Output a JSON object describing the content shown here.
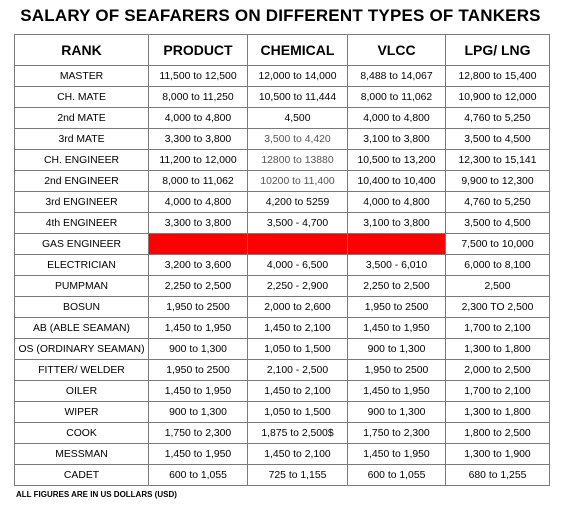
{
  "title": "SALARY OF SEAFARERS ON DIFFERENT TYPES OF TANKERS",
  "headers": [
    "RANK",
    "PRODUCT",
    "CHEMICAL",
    "VLCC",
    "LPG/ LNG"
  ],
  "rows": [
    [
      "MASTER",
      "11,500 to 12,500",
      "12,000 to 14,000",
      "8,488 to 14,067",
      "12,800 to 15,400"
    ],
    [
      "CH. MATE",
      "8,000 to 11,250",
      "10,500 to 11,444",
      "8,000 to 11,062",
      "10,900 to 12,000"
    ],
    [
      "2nd MATE",
      "4,000 to 4,800",
      "4,500",
      "4,000 to 4,800",
      "4,760 to 5,250"
    ],
    [
      "3rd MATE",
      "3,300 to 3,800",
      "3,500 to 4,420",
      "3,100 to 3,800",
      "3,500 to 4,500"
    ],
    [
      "CH. ENGINEER",
      "11,200 to 12,000",
      "12800 to 13880",
      "10,500 to 13,200",
      "12,300 to 15,141"
    ],
    [
      "2nd ENGINEER",
      "8,000 to 11,062",
      "10200 to 11,400",
      "10,400 to 10,400",
      "9,900 to 12,300"
    ],
    [
      "3rd ENGINEER",
      "4,000 to 4,800",
      "4,200 to 5259",
      "4,000 to 4,800",
      "4,760 to 5,250"
    ],
    [
      "4th ENGINEER",
      "3,300 to 3,800",
      "3,500 - 4,700",
      "3,100 to 3,800",
      "3,500 to 4,500"
    ],
    [
      "GAS ENGINEER",
      "",
      "",
      "",
      "7,500 to 10,000"
    ],
    [
      "ELECTRICIAN",
      "3,200 to 3,600",
      "4,000 - 6,500",
      "3,500 - 6,010",
      "6,000 to 8,100"
    ],
    [
      "PUMPMAN",
      "2,250 to 2,500",
      "2,250 - 2,900",
      "2,250 to 2,500",
      "2,500"
    ],
    [
      "BOSUN",
      "1,950 to 2500",
      "2,000 to 2,600",
      "1,950 to 2500",
      "2,300 TO 2,500"
    ],
    [
      "AB (ABLE SEAMAN)",
      "1,450 to 1,950",
      "1,450 to 2,100",
      "1,450 to 1,950",
      "1,700 to 2,100"
    ],
    [
      "OS (ORDINARY SEAMAN)",
      "900 to 1,300",
      "1,050 to 1,500",
      "900 to 1,300",
      "1,300 to 1,800"
    ],
    [
      "FITTER/ WELDER",
      "1,950 to 2500",
      "2,100 - 2,500",
      "1,950 to 2500",
      "2,000 to 2,500"
    ],
    [
      "OILER",
      "1,450 to 1,950",
      "1,450 to 2,100",
      "1,450 to 1,950",
      "1,700 to 2,100"
    ],
    [
      "WIPER",
      "900 to 1,300",
      "1,050 to 1,500",
      "900 to 1,300",
      "1,300 to 1,800"
    ],
    [
      "COOK",
      "1,750 to 2,300",
      "1,875 to 2,500$",
      "1,750 to 2,300",
      "1,800 to 2,500"
    ],
    [
      "MESSMAN",
      "1,450 to 1,950",
      "1,450 to 2,100",
      "1,450 to 1,950",
      "1,300 to 1,900"
    ],
    [
      "CADET",
      "600 to 1,055",
      "725 to 1,155",
      "600 to 1,055",
      "680 to 1,255"
    ]
  ],
  "highlight_color": "#ff0000",
  "footer": "ALL FIGURES ARE IN US DOLLARS (USD)"
}
